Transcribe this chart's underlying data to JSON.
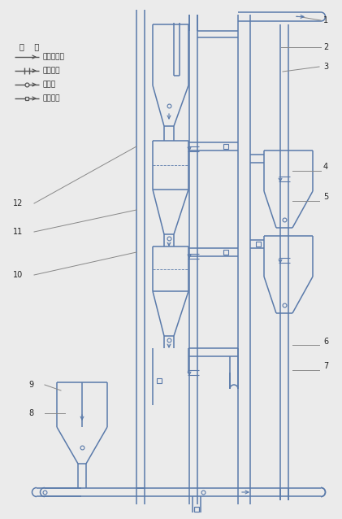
{
  "bg": "#ebebeb",
  "lc": "#5a7aaa",
  "lc_dark": "#3a5a8a",
  "lw": 1.1,
  "lw_thin": 0.7,
  "legend_title": "图    例",
  "legend_labels": [
    "已脱硫烟气",
    "含硫烟气",
    "脱硫剂",
    "脱硫产物"
  ],
  "legend_styles": [
    "arrow",
    "double_tick",
    "circle",
    "square"
  ],
  "num_labels": [
    "1",
    "2",
    "3",
    "4",
    "5",
    "6",
    "7",
    "8",
    "9",
    "10",
    "11",
    "12"
  ],
  "font_size": 7.0
}
